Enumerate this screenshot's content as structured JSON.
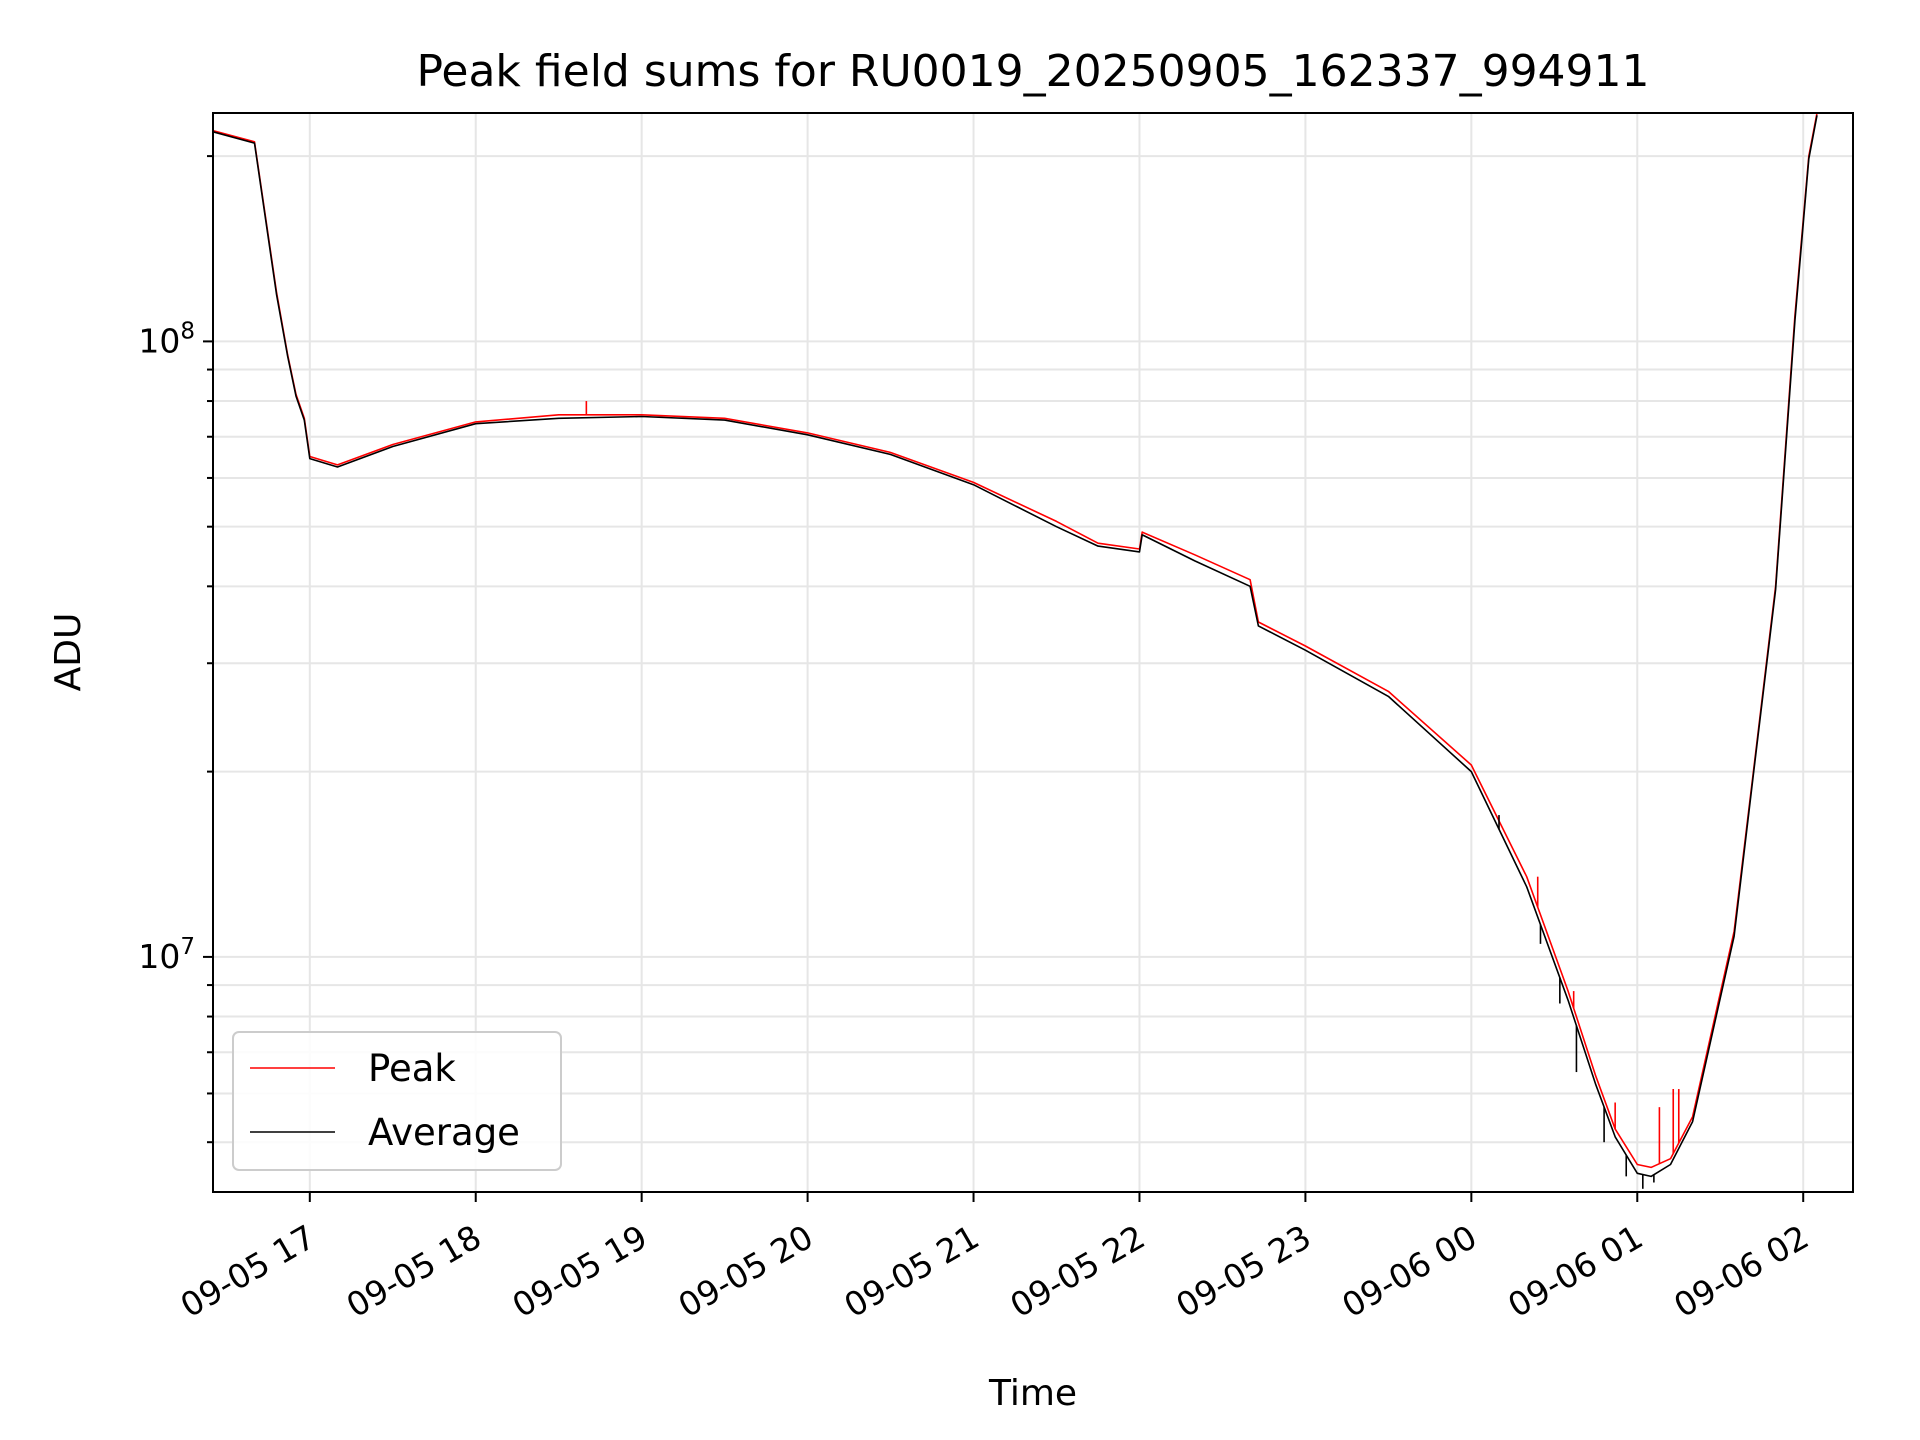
{
  "chart_data": {
    "type": "line",
    "title": "Peak field sums for RU0019_20250905_162337_994911",
    "xlabel": "Time",
    "ylabel": "ADU",
    "y_scale": "log",
    "ylim": [
      4150000,
      235000000
    ],
    "xlim": [
      "2025-09-05 16:25",
      "2025-09-06 02:18"
    ],
    "x_ticks": [
      "09-05 17",
      "09-05 18",
      "09-05 19",
      "09-05 20",
      "09-05 21",
      "09-05 22",
      "09-05 23",
      "09-06 00",
      "09-06 01",
      "09-06 02"
    ],
    "y_ticks": [
      {
        "label_base": "10",
        "label_exp": "7",
        "value": 10000000
      },
      {
        "label_base": "10",
        "label_exp": "8",
        "value": 100000000
      }
    ],
    "grid": true,
    "legend_position": "lower-left",
    "series": [
      {
        "name": "Peak",
        "color": "#ff0000",
        "x": [
          "2025-09-05 16:25",
          "2025-09-05 16:40",
          "2025-09-05 16:48",
          "2025-09-05 16:52",
          "2025-09-05 16:55",
          "2025-09-05 16:58",
          "2025-09-05 17:00",
          "2025-09-05 17:10",
          "2025-09-05 17:30",
          "2025-09-05 18:00",
          "2025-09-05 18:30",
          "2025-09-05 19:00",
          "2025-09-05 19:30",
          "2025-09-05 20:00",
          "2025-09-05 20:30",
          "2025-09-05 21:00",
          "2025-09-05 21:30",
          "2025-09-05 21:45",
          "2025-09-05 22:00",
          "2025-09-05 22:01",
          "2025-09-05 22:20",
          "2025-09-05 22:40",
          "2025-09-05 22:43",
          "2025-09-05 23:00",
          "2025-09-05 23:30",
          "2025-09-06 00:00",
          "2025-09-06 00:20",
          "2025-09-06 00:35",
          "2025-09-06 00:45",
          "2025-09-06 00:52",
          "2025-09-06 01:00",
          "2025-09-06 01:05",
          "2025-09-06 01:12",
          "2025-09-06 01:20",
          "2025-09-06 01:35",
          "2025-09-06 01:42",
          "2025-09-06 01:50",
          "2025-09-06 01:57",
          "2025-09-06 02:02",
          "2025-09-06 02:05"
        ],
        "y": [
          220000000,
          211000000,
          120000000,
          95000000,
          82000000,
          75000000,
          65000000,
          63000000,
          68000000,
          74000000,
          76000000,
          76000000,
          75000000,
          71000000,
          66000000,
          59000000,
          51000000,
          47000000,
          46000000,
          49000000,
          45000000,
          41000000,
          35000000,
          32000000,
          27000000,
          20500000,
          13500000,
          8800000,
          6400000,
          5250000,
          4600000,
          4550000,
          4700000,
          5500000,
          11000000,
          20000000,
          40000000,
          110000000,
          200000000,
          235000000
        ],
        "spikes": [
          {
            "x": "2025-09-05 18:40",
            "y": 80000000
          },
          {
            "x": "2025-09-06 00:24",
            "y": 13500000
          },
          {
            "x": "2025-09-06 00:37",
            "y": 8800000
          },
          {
            "x": "2025-09-06 00:52",
            "y": 5800000
          },
          {
            "x": "2025-09-06 01:08",
            "y": 5700000
          },
          {
            "x": "2025-09-06 01:13",
            "y": 6100000
          },
          {
            "x": "2025-09-06 01:15",
            "y": 6100000
          }
        ]
      },
      {
        "name": "Average",
        "color": "#000000",
        "x": [
          "2025-09-05 16:25",
          "2025-09-05 16:40",
          "2025-09-05 16:48",
          "2025-09-05 16:52",
          "2025-09-05 16:55",
          "2025-09-05 16:58",
          "2025-09-05 17:00",
          "2025-09-05 17:10",
          "2025-09-05 17:30",
          "2025-09-05 18:00",
          "2025-09-05 18:30",
          "2025-09-05 19:00",
          "2025-09-05 19:30",
          "2025-09-05 20:00",
          "2025-09-05 20:30",
          "2025-09-05 21:00",
          "2025-09-05 21:30",
          "2025-09-05 21:45",
          "2025-09-05 22:00",
          "2025-09-05 22:01",
          "2025-09-05 22:20",
          "2025-09-05 22:40",
          "2025-09-05 22:43",
          "2025-09-05 23:00",
          "2025-09-05 23:30",
          "2025-09-06 00:00",
          "2025-09-06 00:20",
          "2025-09-06 00:35",
          "2025-09-06 00:45",
          "2025-09-06 00:52",
          "2025-09-06 01:00",
          "2025-09-06 01:05",
          "2025-09-06 01:12",
          "2025-09-06 01:20",
          "2025-09-06 01:35",
          "2025-09-06 01:42",
          "2025-09-06 01:50",
          "2025-09-06 01:57",
          "2025-09-06 02:02",
          "2025-09-06 02:05"
        ],
        "y": [
          219000000,
          210000000,
          119000000,
          94500000,
          81500000,
          74500000,
          64500000,
          62500000,
          67500000,
          73500000,
          75000000,
          75500000,
          74500000,
          70500000,
          65500000,
          58500000,
          50000000,
          46500000,
          45500000,
          48500000,
          44000000,
          40000000,
          34500000,
          31500000,
          26500000,
          20000000,
          13000000,
          8500000,
          6200000,
          5100000,
          4450000,
          4400000,
          4600000,
          5400000,
          10800000,
          19800000,
          39500000,
          108000000,
          198000000,
          233000000
        ],
        "dips": [
          {
            "x": "2025-09-06 00:10",
            "y": 17000000
          },
          {
            "x": "2025-09-06 00:25",
            "y": 10500000
          },
          {
            "x": "2025-09-06 00:32",
            "y": 8400000
          },
          {
            "x": "2025-09-06 00:38",
            "y": 6500000
          },
          {
            "x": "2025-09-06 00:48",
            "y": 5000000
          },
          {
            "x": "2025-09-06 00:56",
            "y": 4400000
          },
          {
            "x": "2025-09-06 01:02",
            "y": 4200000
          },
          {
            "x": "2025-09-06 01:06",
            "y": 4300000
          }
        ]
      }
    ]
  }
}
